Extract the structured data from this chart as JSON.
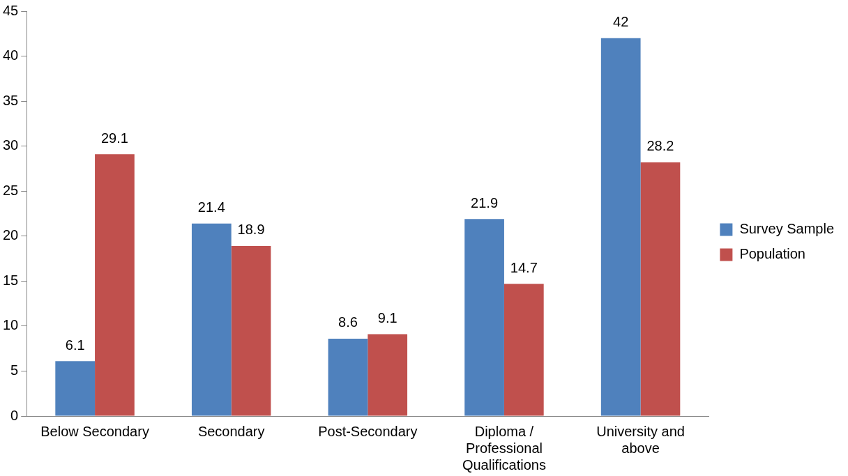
{
  "chart_data": {
    "type": "bar",
    "categories": [
      "Below Secondary",
      "Secondary",
      "Post-Secondary",
      "Diploma / Professional Qualifications",
      "University and above"
    ],
    "series": [
      {
        "name": "Survey Sample",
        "color": "#4f81bd",
        "values": [
          6.1,
          21.4,
          8.6,
          21.9,
          42
        ]
      },
      {
        "name": "Population",
        "color": "#c0504d",
        "values": [
          29.1,
          18.9,
          9.1,
          14.7,
          28.2
        ]
      }
    ],
    "ylim": [
      0,
      45
    ],
    "yticks": [
      0,
      5,
      10,
      15,
      20,
      25,
      30,
      35,
      40,
      45
    ],
    "grid": false,
    "legend": "right",
    "data_labels": true
  }
}
